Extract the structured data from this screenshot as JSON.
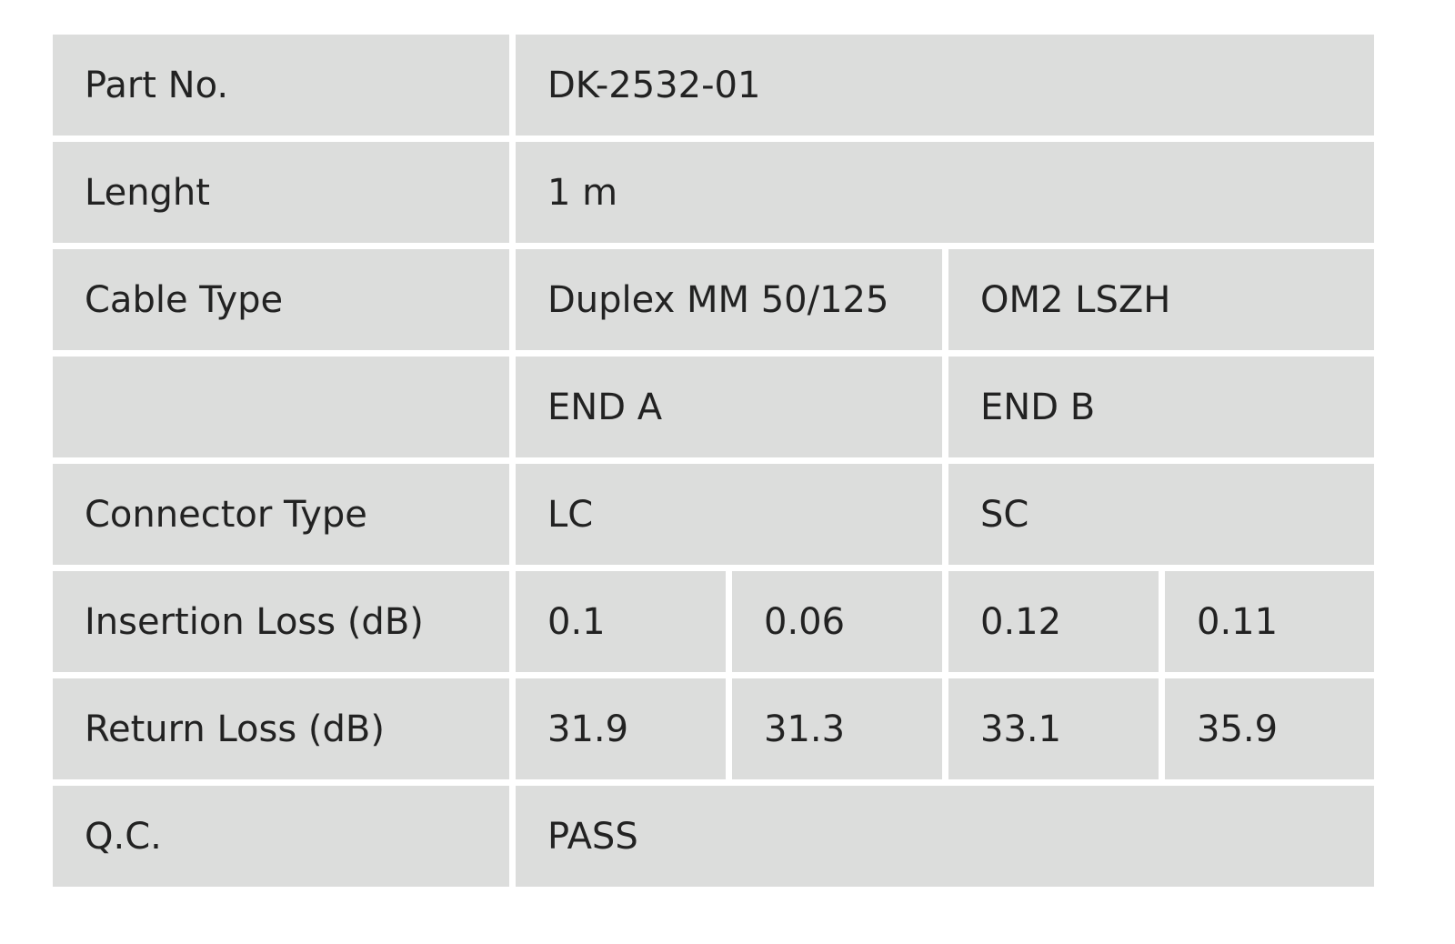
{
  "table": {
    "rows": [
      {
        "label": "Part No.",
        "cells": [
          "DK-2532-01"
        ]
      },
      {
        "label": "Lenght",
        "cells": [
          "1 m"
        ]
      },
      {
        "label": "Cable Type",
        "cells": [
          "Duplex MM 50/125",
          "OM2 LSZH"
        ]
      },
      {
        "cells": [
          "END A",
          "END B"
        ]
      },
      {
        "label": "Connector Type",
        "cells": [
          "LC",
          "SC"
        ]
      },
      {
        "label": "Insertion Loss (dB)",
        "cells": [
          "0.1",
          "0.06",
          "0.12",
          "0.11"
        ]
      },
      {
        "label": "Return Loss (dB)",
        "cells": [
          "31.9",
          "31.3",
          "33.1",
          "35.9"
        ]
      },
      {
        "label": "Q.C.",
        "cells": [
          "PASS"
        ]
      }
    ]
  }
}
